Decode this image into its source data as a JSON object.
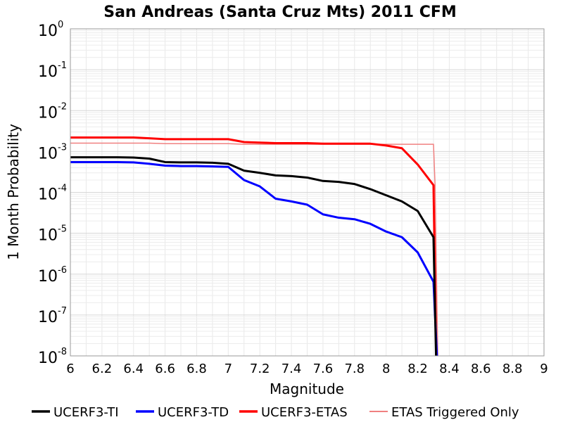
{
  "chart_data": {
    "type": "line",
    "title": "San Andreas (Santa Cruz Mts) 2011 CFM",
    "xlabel": "Magnitude",
    "ylabel": "1 Month Probability",
    "xlim": [
      6,
      9
    ],
    "ylim": [
      1e-08,
      1
    ],
    "y_scale": "log",
    "grid": true,
    "legend_position": "bottom",
    "x_ticks": [
      "6",
      "6.2",
      "6.4",
      "6.6",
      "6.8",
      "7",
      "7.2",
      "7.4",
      "7.6",
      "7.8",
      "8",
      "8.2",
      "8.4",
      "8.6",
      "8.8",
      "9"
    ],
    "y_ticks": [
      {
        "base": "10",
        "exp": "0",
        "value": 1
      },
      {
        "base": "10",
        "exp": "-1",
        "value": 0.1
      },
      {
        "base": "10",
        "exp": "-2",
        "value": 0.01
      },
      {
        "base": "10",
        "exp": "-3",
        "value": 0.001
      },
      {
        "base": "10",
        "exp": "-4",
        "value": 0.0001
      },
      {
        "base": "10",
        "exp": "-5",
        "value": 1e-05
      },
      {
        "base": "10",
        "exp": "-6",
        "value": 1e-06
      },
      {
        "base": "10",
        "exp": "-7",
        "value": 1e-07
      },
      {
        "base": "10",
        "exp": "-8",
        "value": 1e-08
      }
    ],
    "series": [
      {
        "name": "UCERF3-TI",
        "color": "#000000",
        "width": 3,
        "x": [
          6.0,
          6.1,
          6.2,
          6.3,
          6.4,
          6.5,
          6.6,
          6.7,
          6.8,
          6.9,
          7.0,
          7.1,
          7.2,
          7.3,
          7.4,
          7.5,
          7.6,
          7.7,
          7.8,
          7.9,
          8.0,
          8.1,
          8.2,
          8.3,
          8.32
        ],
        "y": [
          0.00072,
          0.00072,
          0.00072,
          0.00072,
          0.00071,
          0.00067,
          0.00055,
          0.00054,
          0.00054,
          0.00053,
          0.0005,
          0.00034,
          0.0003,
          0.00026,
          0.00025,
          0.00023,
          0.00019,
          0.00018,
          0.00016,
          0.00012,
          8.5e-05,
          6e-05,
          3.5e-05,
          8e-06,
          1e-09
        ]
      },
      {
        "name": "UCERF3-TD",
        "color": "#0000ff",
        "width": 3,
        "x": [
          6.0,
          6.1,
          6.2,
          6.3,
          6.4,
          6.5,
          6.6,
          6.7,
          6.8,
          6.9,
          7.0,
          7.1,
          7.2,
          7.3,
          7.4,
          7.5,
          7.6,
          7.7,
          7.8,
          7.9,
          8.0,
          8.1,
          8.2,
          8.3,
          8.33
        ],
        "y": [
          0.00055,
          0.00055,
          0.00055,
          0.00055,
          0.00054,
          0.0005,
          0.00045,
          0.00044,
          0.00044,
          0.00043,
          0.00042,
          0.0002,
          0.00014,
          7e-05,
          6e-05,
          5e-05,
          2.9e-05,
          2.4e-05,
          2.2e-05,
          1.7e-05,
          1.1e-05,
          8e-06,
          3.4e-06,
          6.5e-07,
          1e-09
        ]
      },
      {
        "name": "UCERF3-ETAS",
        "color": "#ff0000",
        "width": 3,
        "x": [
          6.0,
          6.1,
          6.2,
          6.3,
          6.4,
          6.5,
          6.6,
          6.7,
          6.8,
          6.9,
          7.0,
          7.1,
          7.2,
          7.3,
          7.4,
          7.5,
          7.6,
          7.7,
          7.8,
          7.9,
          8.0,
          8.1,
          8.2,
          8.3,
          8.32
        ],
        "y": [
          0.0022,
          0.0022,
          0.0022,
          0.0022,
          0.0022,
          0.0021,
          0.002,
          0.002,
          0.002,
          0.002,
          0.002,
          0.0017,
          0.00165,
          0.0016,
          0.0016,
          0.0016,
          0.00155,
          0.00155,
          0.00155,
          0.00155,
          0.0014,
          0.0012,
          0.00048,
          0.00015,
          1e-09
        ]
      },
      {
        "name": "ETAS Triggered Only",
        "color": "#f08080",
        "width": 1.5,
        "x": [
          6.0,
          6.5,
          6.6,
          7.0,
          7.1,
          7.5,
          8.0,
          8.2,
          8.3,
          8.31,
          8.33
        ],
        "y": [
          0.0016,
          0.0016,
          0.00155,
          0.00155,
          0.0015,
          0.0015,
          0.0015,
          0.0015,
          0.0015,
          0.00015,
          1e-09
        ]
      }
    ]
  }
}
